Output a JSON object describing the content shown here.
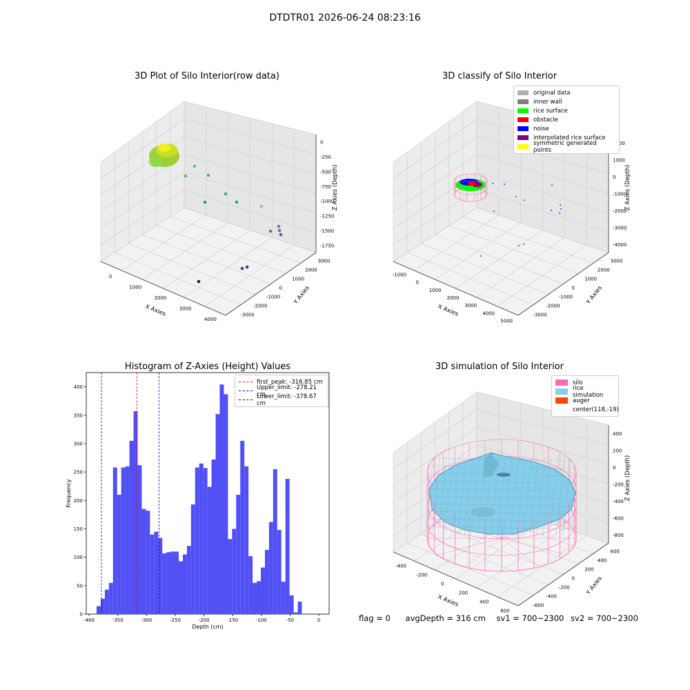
{
  "suptitle": "DTDTR01 2026-06-24 08:23:16",
  "footer": {
    "flag": "flag = 0",
    "avg_depth": "avgDepth = 316 cm",
    "sv1": "sv1 = 700~2300",
    "sv2": "sv2 = 700~2300"
  },
  "colors": {
    "hist_bar": "#5050f5",
    "first_peak": "#ff0000",
    "limits": "#0000cc",
    "silo": "#ff69b4",
    "rice": "#87ceeb",
    "auger": "#ff4500"
  },
  "chart_data": [
    {
      "type": "scatter",
      "title": "3D Plot of Silo Interior(row data)",
      "xlabel": "X Axies",
      "ylabel": "Y Axies",
      "zlabel": "Z Axies (Depth)",
      "x_ticks": [
        "0",
        "1000",
        "2000",
        "3000",
        "4000"
      ],
      "y_ticks": [
        "-3000",
        "-2000",
        "-1000",
        "0",
        "1000",
        "2000",
        "3000"
      ],
      "z_ticks": [
        "0",
        "-250",
        "-500",
        "-750",
        "-1000",
        "-1250",
        "-1500",
        "-1750"
      ],
      "colormap": "viridis",
      "points_xyz": [
        [
          200,
          -200,
          -200
        ],
        [
          1050,
          1500,
          -500
        ],
        [
          800,
          900,
          -750
        ],
        [
          1500,
          1600,
          -800
        ],
        [
          1900,
          800,
          -1000
        ],
        [
          1600,
          200,
          -1250
        ],
        [
          2400,
          800,
          -1300
        ],
        [
          2900,
          1200,
          -1300
        ],
        [
          3500,
          600,
          -1650
        ],
        [
          3600,
          800,
          -1700
        ],
        [
          3700,
          700,
          -1750
        ],
        [
          3200,
          -800,
          -1800
        ],
        [
          3300,
          -600,
          -1800
        ],
        [
          3000,
          -2200,
          -1850
        ]
      ]
    },
    {
      "type": "scatter",
      "title": "3D classify of Silo Interior",
      "xlabel": "X Axies",
      "ylabel": "Y Axies",
      "zlabel": "Z Axies (Depth)",
      "x_ticks": [
        "-1000",
        "0",
        "1000",
        "2000",
        "3000",
        "4000",
        "5000"
      ],
      "y_ticks": [
        "-3000",
        "-2000",
        "-1000",
        "0",
        "1000",
        "2000",
        "3000"
      ],
      "z_ticks": [
        "2000",
        "1000",
        "0",
        "-1000",
        "-2000",
        "-3000",
        "-4000"
      ],
      "legend": [
        {
          "label": "original data",
          "color": "#b0b0b0"
        },
        {
          "label": "inner wall",
          "color": "#808080"
        },
        {
          "label": "rice surface",
          "color": "#00ff00"
        },
        {
          "label": "obstacle",
          "color": "#ff0000"
        },
        {
          "label": "noise",
          "color": "#0000ff"
        },
        {
          "label": "interpolated rice surface",
          "color": "#800080"
        },
        {
          "label": "symmetric generated points",
          "color": "#ffff00"
        }
      ],
      "legend_position": "top-right"
    },
    {
      "type": "bar",
      "title": "Histogram of Z-Axies (Height) Values",
      "xlabel": "Depth (cm)",
      "ylabel": "Frequency",
      "xlim": [
        -405,
        18
      ],
      "ylim": [
        0,
        425
      ],
      "x_ticks": [
        -400,
        -350,
        -300,
        -250,
        -200,
        -150,
        -100,
        -50,
        0
      ],
      "y_ticks": [
        0,
        50,
        100,
        150,
        200,
        250,
        300,
        350,
        400
      ],
      "bin_start": -387,
      "bin_width": 7.15,
      "values": [
        14,
        27,
        43,
        55,
        258,
        210,
        258,
        260,
        305,
        357,
        262,
        185,
        182,
        140,
        145,
        134,
        107,
        109,
        110,
        110,
        93,
        105,
        120,
        193,
        258,
        265,
        257,
        224,
        272,
        352,
        404,
        387,
        132,
        150,
        210,
        305,
        260,
        102,
        55,
        58,
        82,
        113,
        162,
        255,
        148,
        57,
        238,
        33,
        3,
        22
      ],
      "lines": [
        {
          "label": "first_peak: -316.85 cm",
          "x": -316.85,
          "color": "#ff0000"
        },
        {
          "label": "Upper_limit: -278.21 cm",
          "x": -278.21,
          "color": "#0000cc"
        },
        {
          "label": "Lower_limit: -378.67 cm",
          "x": -378.67,
          "color": "#0000cc"
        }
      ],
      "legend_position": "top-right"
    },
    {
      "type": "surface",
      "title": "3D simulation of Silo Interior",
      "xlabel": "X Axies",
      "ylabel": "Y Axies",
      "zlabel": "Z Axies (Depth)",
      "x_ticks": [
        "-400",
        "-200",
        "0",
        "200",
        "400",
        "600"
      ],
      "y_ticks": [
        "-600",
        "-400",
        "-200",
        "0",
        "200",
        "400",
        "600"
      ],
      "z_ticks": [
        "400",
        "200",
        "0",
        "-200",
        "-400",
        "-600",
        "-800"
      ],
      "legend": [
        {
          "label": "silo",
          "color": "#ff69b4"
        },
        {
          "label": "rice simulation",
          "color": "#87ceeb"
        },
        {
          "label": "auger",
          "color": "#ff4500"
        },
        {
          "label": "center(118,-19)",
          "color": ""
        }
      ],
      "legend_position": "top-right"
    }
  ]
}
